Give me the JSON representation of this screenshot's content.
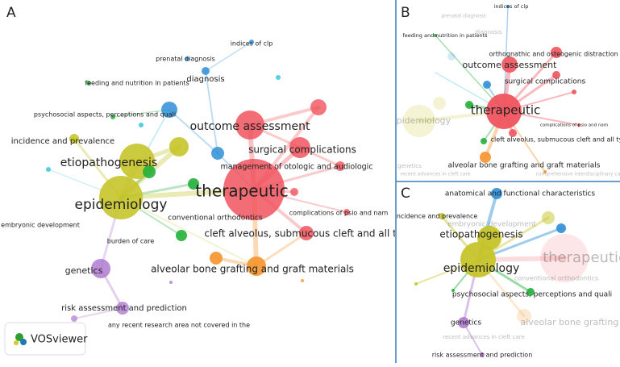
{
  "panels": [
    {
      "label": "A",
      "nodes": [
        "therapeutic",
        "epidemiology",
        "etiopathogenesis",
        "outcome assessment",
        "surgical complications",
        "management of otologic and audiologic",
        "complications of psio and nam",
        "cleft alveolus, submucous cleft and all typ",
        "alveolar bone grafting and graft materials",
        "genetics",
        "risk assessment and prediction",
        "any recent research area not covered in the",
        "burden of care",
        "embryonic development",
        "conventional orthodontics",
        "incidence and prevalence",
        "psychosocial aspects, perceptions and quali",
        "feeding and nutrition in patients",
        "diagnosis",
        "prenatal diagnosis",
        "indices of clp"
      ]
    },
    {
      "label": "B",
      "nodes": [
        "indices of clp",
        "prenatal diagnosis",
        "feeding and nutrition in patients",
        "diagnosis",
        "orthognathic and osteogenic distraction s",
        "outcome assessment",
        "surgical complications",
        "therapeutic",
        "complications of psio and nam",
        "cleft alveolus, submucous cleft and all typ",
        "alveolar bone grafting and graft materials",
        "epidemiology",
        "genetics",
        "recent advances in cleft care",
        "comprehensive interdisciplinary care"
      ]
    },
    {
      "label": "C",
      "nodes": [
        "anatomical and functional characteristics",
        "incidence and prevalence",
        "embryonic development",
        "etiopathogenesis",
        "epidemiology",
        "therapeutic",
        "conventional orthodontics",
        "psychosocial aspects, perceptions and quali",
        "alveolar bone grafting an",
        "genetics",
        "recent advances in cleft care",
        "risk assessment and prediction"
      ]
    }
  ],
  "logo": "VOSviewer"
}
